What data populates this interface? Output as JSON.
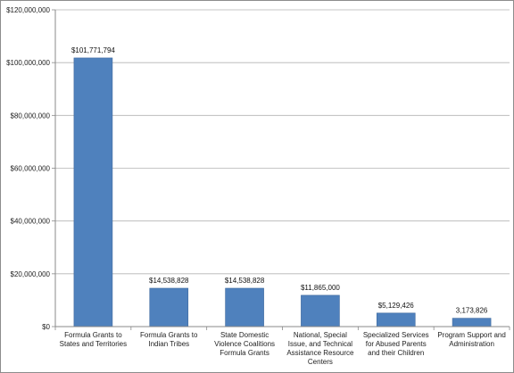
{
  "chart_data": {
    "type": "bar",
    "title": "",
    "xlabel": "",
    "ylabel": "",
    "ylim": [
      0,
      120000000
    ],
    "yticks": [
      0,
      20000000,
      40000000,
      60000000,
      80000000,
      100000000,
      120000000
    ],
    "ytick_labels": [
      "$0",
      "$20,000,000",
      "$40,000,000",
      "$60,000,000",
      "$80,000,000",
      "$100,000,000",
      "$120,000,000"
    ],
    "grid": true,
    "legend": "none",
    "categories": [
      "Formula Grants to States and Territories",
      "Formula Grants to Indian Tribes",
      "State Domestic Violence Coalitions Formula Grants",
      "National, Special Issue, and Technical Assistance Resource Centers",
      "Specialized Services for Abused Parents and their Children",
      "Program Support and Administration"
    ],
    "values": [
      101771794,
      14538828,
      14538828,
      11865000,
      5129426,
      3173826
    ],
    "data_labels": [
      "$101,771,794",
      "$14,538,828",
      "$14,538,828",
      "$11,865,000",
      "$5,129,426",
      "3,173,826"
    ],
    "colors": {
      "bar": "#4f81bd",
      "bar_edge": "#3f6a9e",
      "grid": "#b3b3b3",
      "axis": "#888888"
    }
  }
}
